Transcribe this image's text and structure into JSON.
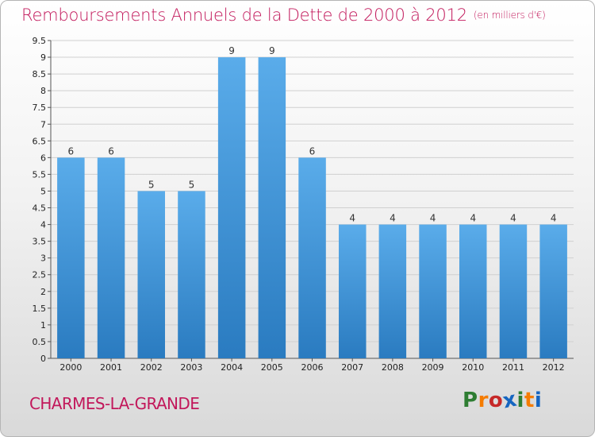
{
  "header": {
    "title": "Remboursements Annuels de la Dette de 2000 à 2012",
    "subtitle": "(en milliers d'€)"
  },
  "footer": {
    "town": "CHARMES-LA-GRANDE",
    "logo_letters": [
      "P",
      "r",
      "o",
      "x",
      "i",
      "t",
      "i"
    ],
    "logo_colors": [
      "#2e7d32",
      "#f57c00",
      "#c62828",
      "#1565c0",
      "#2e7d32",
      "#f57c00",
      "#1565c0"
    ]
  },
  "colors": {
    "bar_top": "#5aacea",
    "bar_bottom": "#2a7bc0",
    "title": "#c2185b"
  },
  "chart_data": {
    "type": "bar",
    "categories": [
      "2000",
      "2001",
      "2002",
      "2003",
      "2004",
      "2005",
      "2006",
      "2007",
      "2008",
      "2009",
      "2010",
      "2011",
      "2012"
    ],
    "values": [
      6,
      6,
      5,
      5,
      9,
      9,
      6,
      4,
      4,
      4,
      4,
      4,
      4
    ],
    "ylim": [
      0,
      9.5
    ],
    "yticks": [
      "0",
      "0.5",
      "1",
      "1.5",
      "2",
      "2.5",
      "3",
      "3.5",
      "4",
      "4.5",
      "5",
      "5.5",
      "6",
      "6.5",
      "7",
      "7.5",
      "8",
      "8.5",
      "9",
      "9.5"
    ],
    "grid": true,
    "data_labels": true
  }
}
